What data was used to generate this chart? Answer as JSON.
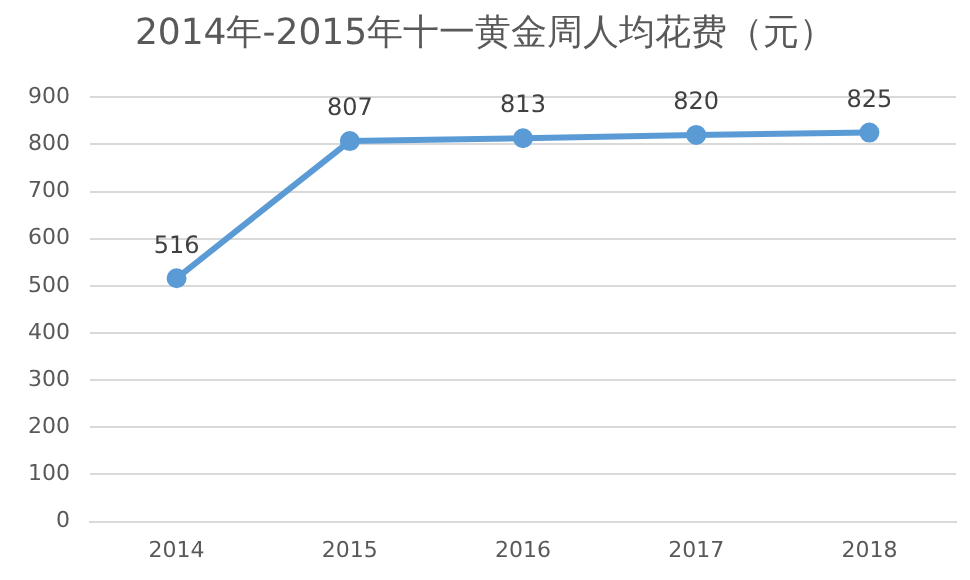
{
  "chart_data": {
    "type": "line",
    "title": "2014年-2015年十一黄金周人均花费（元）",
    "categories": [
      "2014",
      "2015",
      "2016",
      "2017",
      "2018"
    ],
    "series": [
      {
        "color": "#5b9bd5",
        "values": [
          516,
          807,
          813,
          820,
          825
        ]
      }
    ],
    "ylim": [
      0,
      900
    ],
    "yticks": [
      0,
      100,
      200,
      300,
      400,
      500,
      600,
      700,
      800,
      900
    ],
    "grid": "y",
    "marker": "circle",
    "line_style": "solid",
    "data_labels": true,
    "legend": false
  }
}
